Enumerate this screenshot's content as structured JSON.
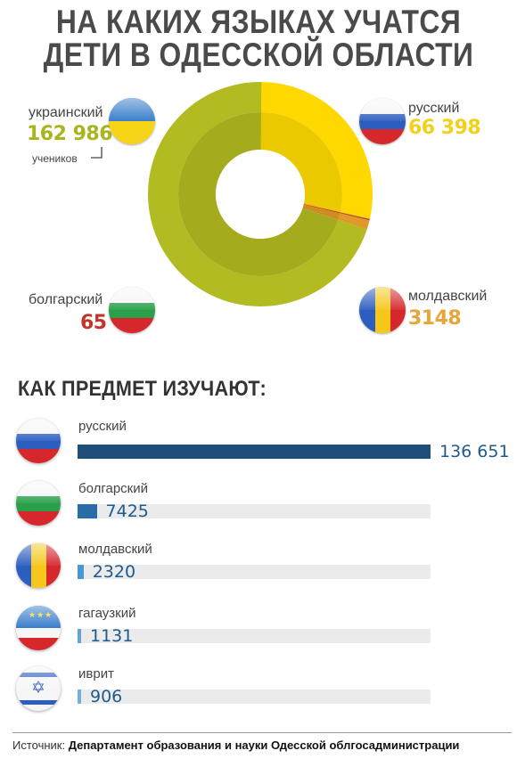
{
  "title_lines": [
    "НА КАКИХ ЯЗЫКАХ УЧАТСЯ",
    "ДЕТИ В ОДЕССКОЙ ОБЛАСТИ"
  ],
  "chart_data": [
    {
      "type": "pie",
      "title": "НА КАКИХ ЯЗЫКАХ УЧАТСЯ ДЕТИ В ОДЕССКОЙ ОБЛАСТИ",
      "categories": [
        "украинский",
        "русский",
        "молдавский",
        "болгарский"
      ],
      "values": [
        162986,
        66398,
        3148,
        65
      ],
      "display": [
        "162 986",
        "66 398",
        "3148",
        "65"
      ],
      "colors": [
        "#b3bb22",
        "#ffd800",
        "#e09a2a",
        "#cc3322"
      ],
      "annotation": "учеников"
    },
    {
      "type": "bar",
      "title": "КАК ПРЕДМЕТ ИЗУЧАЮТ:",
      "categories": [
        "русский",
        "болгарский",
        "молдавский",
        "гагаузкий",
        "иврит"
      ],
      "values": [
        136651,
        7425,
        2320,
        1131,
        906
      ],
      "display": [
        "136 651",
        "7425",
        "2320",
        "1131",
        "906"
      ],
      "colors": [
        "#1f4e7a",
        "#2a6ca8",
        "#4b98d0",
        "#5fa6d8",
        "#6fb2de"
      ]
    }
  ],
  "source": {
    "label": "Источник:",
    "text": "Департамент образования и науки Одесской облгосадминистрации"
  }
}
